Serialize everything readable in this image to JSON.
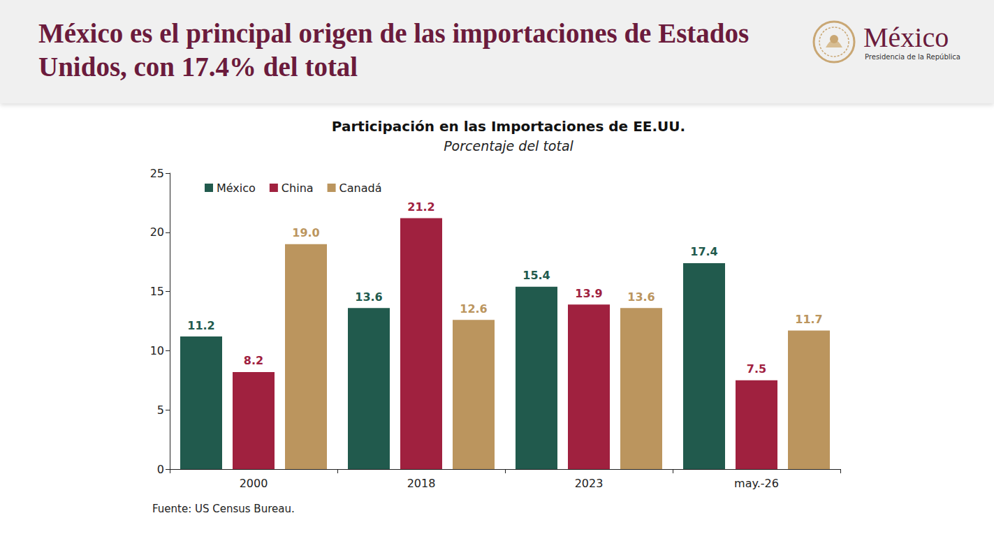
{
  "header": {
    "title": "México es el principal origen de las importaciones de Estados Unidos, con 17.4% del total",
    "logo_title": "México",
    "logo_subtitle": "Presidencia de la República"
  },
  "chart_data": {
    "type": "bar",
    "title": "Participación en las Importaciones de EE.UU.",
    "subtitle": "Porcentaje del total",
    "categories": [
      "2000",
      "2018",
      "2023",
      "may.-26"
    ],
    "series": [
      {
        "name": "México",
        "color": "#215a4d",
        "values": [
          11.2,
          13.6,
          15.4,
          17.4
        ],
        "value_labels": [
          "11.2",
          "13.6",
          "15.4",
          "17.4"
        ]
      },
      {
        "name": "China",
        "color": "#a0213f",
        "values": [
          8.2,
          21.2,
          13.9,
          7.5
        ],
        "value_labels": [
          "8.2",
          "21.2",
          "13.9",
          "7.5"
        ]
      },
      {
        "name": "Canadá",
        "color": "#bb955e",
        "values": [
          19.0,
          12.6,
          13.6,
          11.7
        ],
        "value_labels": [
          "19.0",
          "12.6",
          "13.6",
          "11.7"
        ]
      }
    ],
    "ylim": [
      0,
      25
    ],
    "yticks": [
      0,
      5,
      10,
      15,
      20,
      25
    ],
    "grid": false,
    "legend": "top-left",
    "data_labels": true,
    "source": "Fuente: US Census Bureau."
  }
}
